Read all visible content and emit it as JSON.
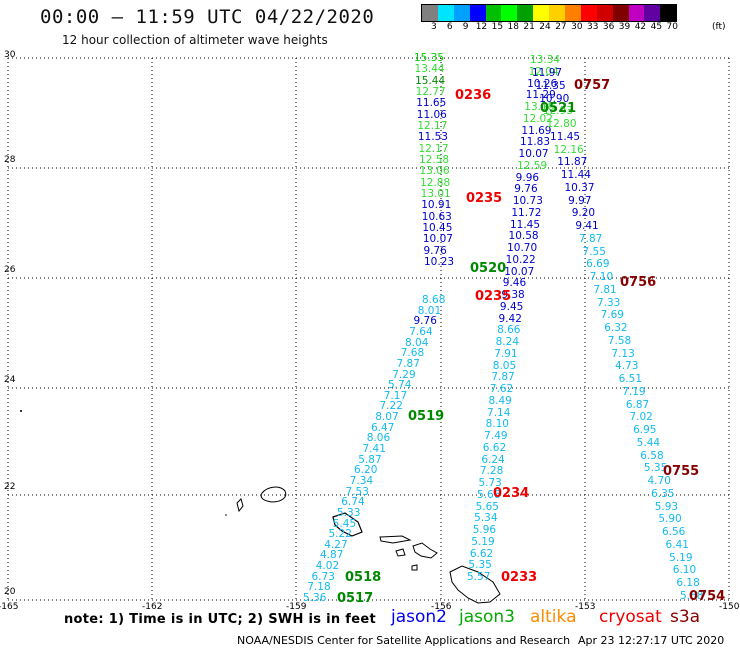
{
  "header": {
    "title": "00:00 – 11:59 UTC 04/22/2020",
    "subtitle": "12 hour collection of altimeter wave heights"
  },
  "colorbar": {
    "unit_label": "(ft)",
    "labels": [
      "3",
      "6",
      "9",
      "12",
      "15",
      "18",
      "21",
      "24",
      "27",
      "30",
      "33",
      "36",
      "39",
      "42",
      "45",
      "70"
    ],
    "colors": [
      "#808080",
      "#00e5ff",
      "#00a0ff",
      "#0000ff",
      "#00c000",
      "#00ff00",
      "#00a000",
      "#ffff00",
      "#ffd000",
      "#ff8000",
      "#ff0000",
      "#d00000",
      "#800000",
      "#c000c0",
      "#6000a0",
      "#000000"
    ]
  },
  "axes": {
    "lon_ticks": [
      "-165",
      "-162",
      "-159",
      "-156",
      "-153",
      "-150"
    ],
    "lat_ticks": [
      "30",
      "28",
      "26",
      "24",
      "22",
      "20"
    ]
  },
  "tracks": [
    {
      "id": "j3-0520",
      "color": "#00aa00",
      "time": "0520",
      "points": [
        [
          "15.35",
          "#00cc00"
        ],
        [
          "13.44",
          "#33dd33"
        ],
        [
          "15.44",
          "#008800"
        ],
        [
          "12.77",
          "#33dd33"
        ],
        [
          "11.65",
          "#0000cc"
        ],
        [
          "11.06",
          "#0000cc"
        ],
        [
          "12.17",
          "#33dd33"
        ],
        [
          "11.53",
          "#0000cc"
        ],
        [
          "12.17",
          "#33dd33"
        ],
        [
          "12.58",
          "#33dd33"
        ],
        [
          "13.06",
          "#33dd33"
        ],
        [
          "12.88",
          "#33dd33"
        ],
        [
          "13.01",
          "#33dd33"
        ],
        [
          "10.91",
          "#0000cc"
        ],
        [
          "10.63",
          "#0000cc"
        ],
        [
          "10.45",
          "#0000cc"
        ],
        [
          "10.07",
          "#0000cc"
        ],
        [
          "9.76",
          "#0000cc"
        ],
        [
          "10.23",
          "#0000cc"
        ]
      ]
    },
    {
      "id": "j2-0235",
      "color": "#ee0000",
      "time": "0235",
      "points": [
        [
          "13.34",
          "#33dd33"
        ],
        [
          "12.04",
          "#33dd33"
        ],
        [
          "10.26",
          "#0000cc"
        ],
        [
          "11.29",
          "#0000cc"
        ],
        [
          "13.18",
          "#33dd33"
        ],
        [
          "12.02",
          "#33dd33"
        ],
        [
          "11.69",
          "#0000cc"
        ],
        [
          "11.83",
          "#0000cc"
        ],
        [
          "10.07",
          "#0000cc"
        ],
        [
          "12.59",
          "#33dd33"
        ],
        [
          "9.96",
          "#0000cc"
        ],
        [
          "9.76",
          "#0000cc"
        ],
        [
          "10.73",
          "#0000cc"
        ],
        [
          "11.72",
          "#0000cc"
        ],
        [
          "11.45",
          "#0000cc"
        ],
        [
          "10.58",
          "#0000cc"
        ],
        [
          "10.70",
          "#0000cc"
        ],
        [
          "10.22",
          "#0000cc"
        ],
        [
          "10.07",
          "#0000cc"
        ],
        [
          "9.46",
          "#0000cc"
        ],
        [
          "9.38",
          "#0000cc"
        ],
        [
          "9.45",
          "#0000cc"
        ],
        [
          "9.42",
          "#0000cc"
        ],
        [
          "8.66",
          "#11bbee"
        ],
        [
          "8.24",
          "#11bbee"
        ],
        [
          "7.91",
          "#11bbee"
        ],
        [
          "8.05",
          "#11bbee"
        ],
        [
          "7.87",
          "#11bbee"
        ],
        [
          "7.62",
          "#11bbee"
        ],
        [
          "8.49",
          "#11bbee"
        ],
        [
          "7.14",
          "#11bbee"
        ],
        [
          "8.10",
          "#11bbee"
        ],
        [
          "7.49",
          "#11bbee"
        ],
        [
          "6.62",
          "#11bbee"
        ],
        [
          "6.24",
          "#11bbee"
        ],
        [
          "7.28",
          "#11bbee"
        ],
        [
          "5.73",
          "#11bbee"
        ],
        [
          "5.66",
          "#11bbee"
        ],
        [
          "5.65",
          "#11bbee"
        ],
        [
          "5.34",
          "#11bbee"
        ],
        [
          "5.96",
          "#11bbee"
        ],
        [
          "5.19",
          "#11bbee"
        ],
        [
          "6.62",
          "#11bbee"
        ],
        [
          "5.35",
          "#11bbee"
        ],
        [
          "5.57",
          "#11bbee"
        ]
      ]
    },
    {
      "id": "j3-0521",
      "color": "#00aa00",
      "time": "0521",
      "points": [
        [
          "11.97",
          "#0000cc"
        ],
        [
          "11.35",
          "#0000cc"
        ],
        [
          "10.90",
          "#0000cc"
        ],
        [
          "12.93",
          "#33dd33"
        ],
        [
          "12.80",
          "#33dd33"
        ],
        [
          "11.45",
          "#0000cc"
        ],
        [
          "12.16",
          "#33dd33"
        ],
        [
          "11.87",
          "#0000cc"
        ],
        [
          "11.44",
          "#0000cc"
        ],
        [
          "10.37",
          "#0000cc"
        ],
        [
          "9.97",
          "#0000cc"
        ],
        [
          "9.20",
          "#0000cc"
        ],
        [
          "9.41",
          "#0000cc"
        ],
        [
          "7.87",
          "#11bbee"
        ],
        [
          "7.55",
          "#11bbee"
        ],
        [
          "6.69",
          "#11bbee"
        ],
        [
          "7.10",
          "#11bbee"
        ],
        [
          "7.81",
          "#11bbee"
        ],
        [
          "7.33",
          "#11bbee"
        ],
        [
          "7.69",
          "#11bbee"
        ],
        [
          "6.32",
          "#11bbee"
        ],
        [
          "7.58",
          "#11bbee"
        ],
        [
          "7.13",
          "#11bbee"
        ],
        [
          "4.73",
          "#11bbee"
        ],
        [
          "6.51",
          "#11bbee"
        ],
        [
          "7.19",
          "#11bbee"
        ],
        [
          "6.87",
          "#11bbee"
        ],
        [
          "7.02",
          "#11bbee"
        ],
        [
          "6.95",
          "#11bbee"
        ],
        [
          "5.44",
          "#11bbee"
        ],
        [
          "6.58",
          "#11bbee"
        ],
        [
          "5.35",
          "#11bbee"
        ],
        [
          "4.70",
          "#11bbee"
        ],
        [
          "6.35",
          "#11bbee"
        ],
        [
          "5.93",
          "#11bbee"
        ],
        [
          "5.90",
          "#11bbee"
        ],
        [
          "6.56",
          "#11bbee"
        ],
        [
          "6.41",
          "#11bbee"
        ],
        [
          "5.19",
          "#11bbee"
        ],
        [
          "6.10",
          "#11bbee"
        ],
        [
          "6.18",
          "#11bbee"
        ],
        [
          "5.68",
          "#11bbee"
        ]
      ]
    },
    {
      "id": "j3-0519",
      "color": "#00aa00",
      "time": "0519",
      "points": [
        [
          "8.68",
          "#11bbee"
        ],
        [
          "8.01",
          "#11bbee"
        ],
        [
          "9.76",
          "#0000cc"
        ],
        [
          "7.64",
          "#11bbee"
        ],
        [
          "8.04",
          "#11bbee"
        ],
        [
          "7.68",
          "#11bbee"
        ],
        [
          "7.87",
          "#11bbee"
        ],
        [
          "7.29",
          "#11bbee"
        ],
        [
          "5.74",
          "#11bbee"
        ],
        [
          "7.17",
          "#11bbee"
        ],
        [
          "7.22",
          "#11bbee"
        ],
        [
          "8.07",
          "#11bbee"
        ],
        [
          "6.47",
          "#11bbee"
        ],
        [
          "8.06",
          "#11bbee"
        ],
        [
          "7.41",
          "#11bbee"
        ],
        [
          "5.87",
          "#11bbee"
        ],
        [
          "6.20",
          "#11bbee"
        ],
        [
          "7.34",
          "#11bbee"
        ],
        [
          "7.53",
          "#11bbee"
        ],
        [
          "6.74",
          "#11bbee"
        ],
        [
          "5.33",
          "#11bbee"
        ],
        [
          "5.45",
          "#11bbee"
        ],
        [
          "5.22",
          "#11bbee"
        ],
        [
          "4.27",
          "#11bbee"
        ],
        [
          "4.87",
          "#11bbee"
        ],
        [
          "4.02",
          "#11bbee"
        ],
        [
          "6.73",
          "#11bbee"
        ],
        [
          "7.18",
          "#11bbee"
        ],
        [
          "5.36",
          "#11bbee"
        ]
      ]
    }
  ],
  "pass_times": [
    {
      "text": "0236",
      "color": "#ee0000"
    },
    {
      "text": "0757",
      "color": "#880000"
    },
    {
      "text": "0521",
      "color": "#008800"
    },
    {
      "text": "0235",
      "color": "#ee0000"
    },
    {
      "text": "0520",
      "color": "#008800"
    },
    {
      "text": "0235",
      "color": "#ee0000"
    },
    {
      "text": "0756",
      "color": "#880000"
    },
    {
      "text": "0519",
      "color": "#008800"
    },
    {
      "text": "0755",
      "color": "#880000"
    },
    {
      "text": "0234",
      "color": "#ee0000"
    },
    {
      "text": "0518",
      "color": "#008800"
    },
    {
      "text": "0233",
      "color": "#ee0000"
    },
    {
      "text": "0517",
      "color": "#008800"
    },
    {
      "text": "0754",
      "color": "#880000"
    }
  ],
  "footer": {
    "note": "note:  1) Time is in UTC;  2) SWH is in feet",
    "legend": [
      {
        "text": "jason2",
        "color": "#0000ee"
      },
      {
        "text": "jason3",
        "color": "#00aa00"
      },
      {
        "text": "altika",
        "color": "#ff8c00"
      },
      {
        "text": "cryosat",
        "color": "#ee0000"
      },
      {
        "text": "s3a",
        "color": "#880000"
      }
    ],
    "credit": "NOAA/NESDIS Center for Satellite Applications and Research",
    "timestamp": "Apr 23 12:27:17 UTC 2020"
  }
}
